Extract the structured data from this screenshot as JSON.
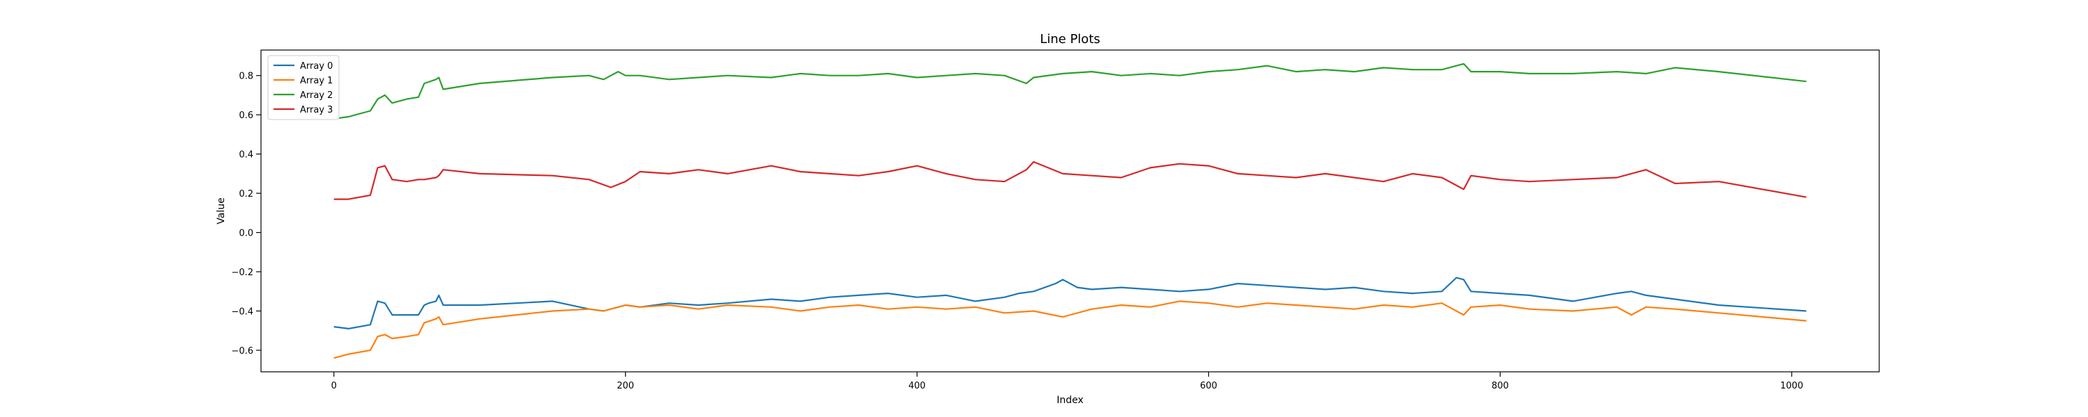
{
  "chart_data": {
    "type": "line",
    "title": "Line Plots",
    "xlabel": "Index",
    "ylabel": "Value",
    "xlim": [
      -50,
      1060
    ],
    "ylim": [
      -0.71,
      0.93
    ],
    "xticks": [
      0,
      200,
      400,
      600,
      800,
      1000
    ],
    "yticks": [
      -0.6,
      -0.4,
      -0.2,
      0.0,
      0.2,
      0.4,
      0.6,
      0.8
    ],
    "xtick_labels": [
      "0",
      "200",
      "400",
      "600",
      "800",
      "1000"
    ],
    "ytick_labels": [
      "−0.6",
      "−0.4",
      "−0.2",
      "0.0",
      "0.2",
      "0.4",
      "0.6",
      "0.8"
    ],
    "grid": false,
    "legend_position": "upper-left",
    "series": [
      {
        "name": "Array 0",
        "color": "#1f77b4",
        "x": [
          0,
          10,
          25,
          30,
          35,
          40,
          50,
          58,
          62,
          65,
          70,
          72,
          75,
          100,
          150,
          175,
          185,
          200,
          210,
          230,
          250,
          270,
          300,
          320,
          340,
          360,
          380,
          400,
          420,
          440,
          460,
          470,
          480,
          495,
          500,
          510,
          520,
          540,
          560,
          580,
          600,
          620,
          640,
          660,
          680,
          700,
          720,
          740,
          760,
          770,
          775,
          780,
          800,
          820,
          850,
          880,
          890,
          900,
          920,
          950,
          1010
        ],
        "y": [
          -0.48,
          -0.49,
          -0.47,
          -0.35,
          -0.36,
          -0.42,
          -0.42,
          -0.42,
          -0.37,
          -0.36,
          -0.35,
          -0.32,
          -0.37,
          -0.37,
          -0.35,
          -0.39,
          -0.4,
          -0.37,
          -0.38,
          -0.36,
          -0.37,
          -0.36,
          -0.34,
          -0.35,
          -0.33,
          -0.32,
          -0.31,
          -0.33,
          -0.32,
          -0.35,
          -0.33,
          -0.31,
          -0.3,
          -0.26,
          -0.24,
          -0.28,
          -0.29,
          -0.28,
          -0.29,
          -0.3,
          -0.29,
          -0.26,
          -0.27,
          -0.28,
          -0.29,
          -0.28,
          -0.3,
          -0.31,
          -0.3,
          -0.23,
          -0.24,
          -0.3,
          -0.31,
          -0.32,
          -0.35,
          -0.31,
          -0.3,
          -0.32,
          -0.34,
          -0.37,
          -0.4
        ]
      },
      {
        "name": "Array 1",
        "color": "#ff7f0e",
        "x": [
          0,
          10,
          25,
          30,
          35,
          40,
          50,
          58,
          62,
          70,
          72,
          75,
          100,
          150,
          175,
          185,
          200,
          210,
          230,
          250,
          270,
          300,
          320,
          340,
          360,
          380,
          400,
          420,
          440,
          460,
          480,
          500,
          520,
          540,
          560,
          580,
          600,
          620,
          640,
          660,
          680,
          700,
          720,
          740,
          760,
          775,
          780,
          800,
          820,
          850,
          880,
          890,
          900,
          920,
          950,
          1010
        ],
        "y": [
          -0.64,
          -0.62,
          -0.6,
          -0.53,
          -0.52,
          -0.54,
          -0.53,
          -0.52,
          -0.46,
          -0.44,
          -0.43,
          -0.47,
          -0.44,
          -0.4,
          -0.39,
          -0.4,
          -0.37,
          -0.38,
          -0.37,
          -0.39,
          -0.37,
          -0.38,
          -0.4,
          -0.38,
          -0.37,
          -0.39,
          -0.38,
          -0.39,
          -0.38,
          -0.41,
          -0.4,
          -0.43,
          -0.39,
          -0.37,
          -0.38,
          -0.35,
          -0.36,
          -0.38,
          -0.36,
          -0.37,
          -0.38,
          -0.39,
          -0.37,
          -0.38,
          -0.36,
          -0.42,
          -0.38,
          -0.37,
          -0.39,
          -0.4,
          -0.38,
          -0.42,
          -0.38,
          -0.39,
          -0.41,
          -0.45
        ]
      },
      {
        "name": "Array 2",
        "color": "#2ca02c",
        "x": [
          0,
          10,
          25,
          30,
          35,
          40,
          50,
          58,
          62,
          70,
          72,
          75,
          100,
          150,
          175,
          185,
          195,
          200,
          210,
          230,
          250,
          270,
          300,
          320,
          340,
          360,
          380,
          400,
          420,
          440,
          460,
          475,
          480,
          500,
          520,
          540,
          560,
          580,
          600,
          620,
          640,
          660,
          680,
          700,
          720,
          740,
          760,
          775,
          780,
          800,
          820,
          850,
          880,
          900,
          920,
          950,
          1010
        ],
        "y": [
          0.58,
          0.59,
          0.62,
          0.68,
          0.7,
          0.66,
          0.68,
          0.69,
          0.76,
          0.78,
          0.79,
          0.73,
          0.76,
          0.79,
          0.8,
          0.78,
          0.82,
          0.8,
          0.8,
          0.78,
          0.79,
          0.8,
          0.79,
          0.81,
          0.8,
          0.8,
          0.81,
          0.79,
          0.8,
          0.81,
          0.8,
          0.76,
          0.79,
          0.81,
          0.82,
          0.8,
          0.81,
          0.8,
          0.82,
          0.83,
          0.85,
          0.82,
          0.83,
          0.82,
          0.84,
          0.83,
          0.83,
          0.86,
          0.82,
          0.82,
          0.81,
          0.81,
          0.82,
          0.81,
          0.84,
          0.82,
          0.77
        ]
      },
      {
        "name": "Array 3",
        "color": "#d62728",
        "x": [
          0,
          10,
          25,
          30,
          35,
          40,
          50,
          58,
          62,
          70,
          72,
          75,
          100,
          150,
          175,
          190,
          200,
          210,
          230,
          250,
          270,
          300,
          320,
          340,
          360,
          380,
          400,
          420,
          440,
          460,
          475,
          480,
          500,
          520,
          540,
          560,
          580,
          600,
          620,
          640,
          660,
          680,
          700,
          720,
          740,
          760,
          775,
          780,
          800,
          820,
          850,
          880,
          900,
          920,
          950,
          1010
        ],
        "y": [
          0.17,
          0.17,
          0.19,
          0.33,
          0.34,
          0.27,
          0.26,
          0.27,
          0.27,
          0.28,
          0.29,
          0.32,
          0.3,
          0.29,
          0.27,
          0.23,
          0.26,
          0.31,
          0.3,
          0.32,
          0.3,
          0.34,
          0.31,
          0.3,
          0.29,
          0.31,
          0.34,
          0.3,
          0.27,
          0.26,
          0.32,
          0.36,
          0.3,
          0.29,
          0.28,
          0.33,
          0.35,
          0.34,
          0.3,
          0.29,
          0.28,
          0.3,
          0.28,
          0.26,
          0.3,
          0.28,
          0.22,
          0.29,
          0.27,
          0.26,
          0.27,
          0.28,
          0.32,
          0.25,
          0.26,
          0.18
        ]
      }
    ]
  }
}
